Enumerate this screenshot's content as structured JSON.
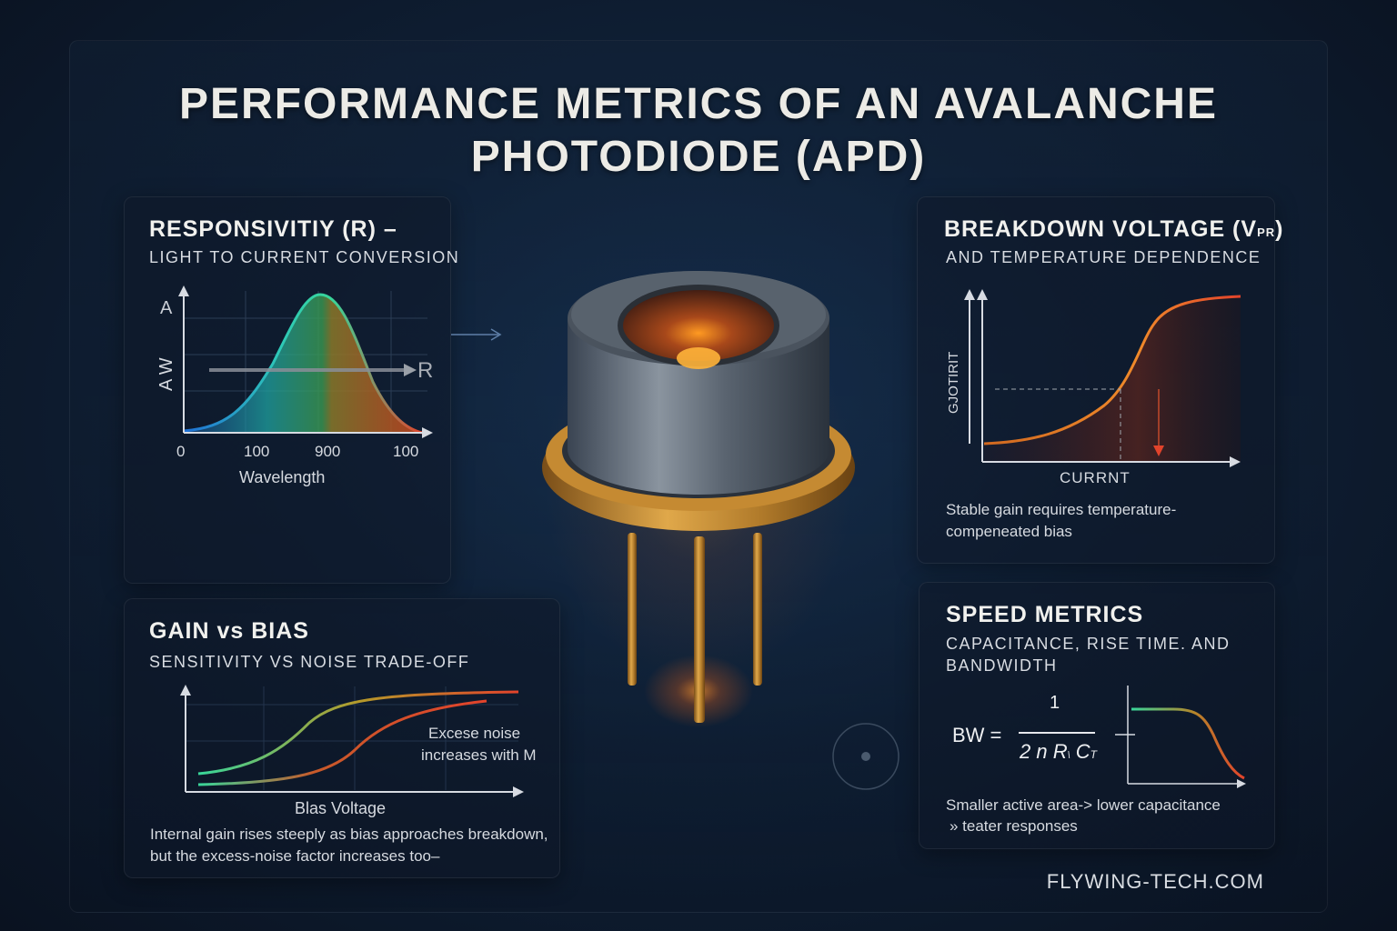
{
  "title": {
    "line1": "PERFORMANCE METRICS OF AN AVALANCHE",
    "line2": "PHOTODIODE (APD)"
  },
  "responsivity": {
    "title": "RESPONSIVITIY (R) –",
    "subtitle": "LIGHT TO CURRENT CONVERSION",
    "y_top_label": "A",
    "y_label": "A W",
    "arrow_label": "R",
    "x_ticks": [
      "0",
      "100",
      "900",
      "100"
    ],
    "x_label": "Wavelength"
  },
  "breakdown": {
    "title": "BREAKDOWN VOLTAGE (V",
    "title_sub": "PR",
    "title_end": ")",
    "subtitle": "AND TEMPERATURE DEPENDENCE",
    "y_label": "GJOTIRIT",
    "x_label": "CURRNT",
    "note_line1": "Stable gain requires temperature-",
    "note_line2": "compeneated bias"
  },
  "gain": {
    "title": "GAIN vs BIAS",
    "subtitle": "SENSITIVITY VS NOISE TRADE-OFF",
    "annotation_line1": "Excese noise",
    "annotation_line2": "increases with M",
    "x_label": "Blas Voltage",
    "note_line1": "Internal gain rises steeply as bias approaches breakdown,",
    "note_line2": "but the excess-noise factor increases too–"
  },
  "speed": {
    "title": "SPEED METRICS",
    "subtitle_line1": "CAPACITANCE, RISE TIME. AND",
    "subtitle_line2": "BANDWIDTH",
    "formula_lhs": "BW =",
    "formula_num": "1",
    "formula_den": "2 n R",
    "formula_den_sub": "\\",
    "formula_den_end": "C",
    "formula_den_end_sub": "T",
    "note_line1": "Smaller active area-> lower capacitance",
    "note_line2": "» teater responses"
  },
  "brand": "FLYWING-TECH.COM",
  "colors": {
    "curve_blue": "#2aa6d8",
    "curve_green": "#38d69a",
    "curve_orange": "#f07a2a",
    "curve_red": "#e2432b",
    "gold": "#c58a32"
  }
}
